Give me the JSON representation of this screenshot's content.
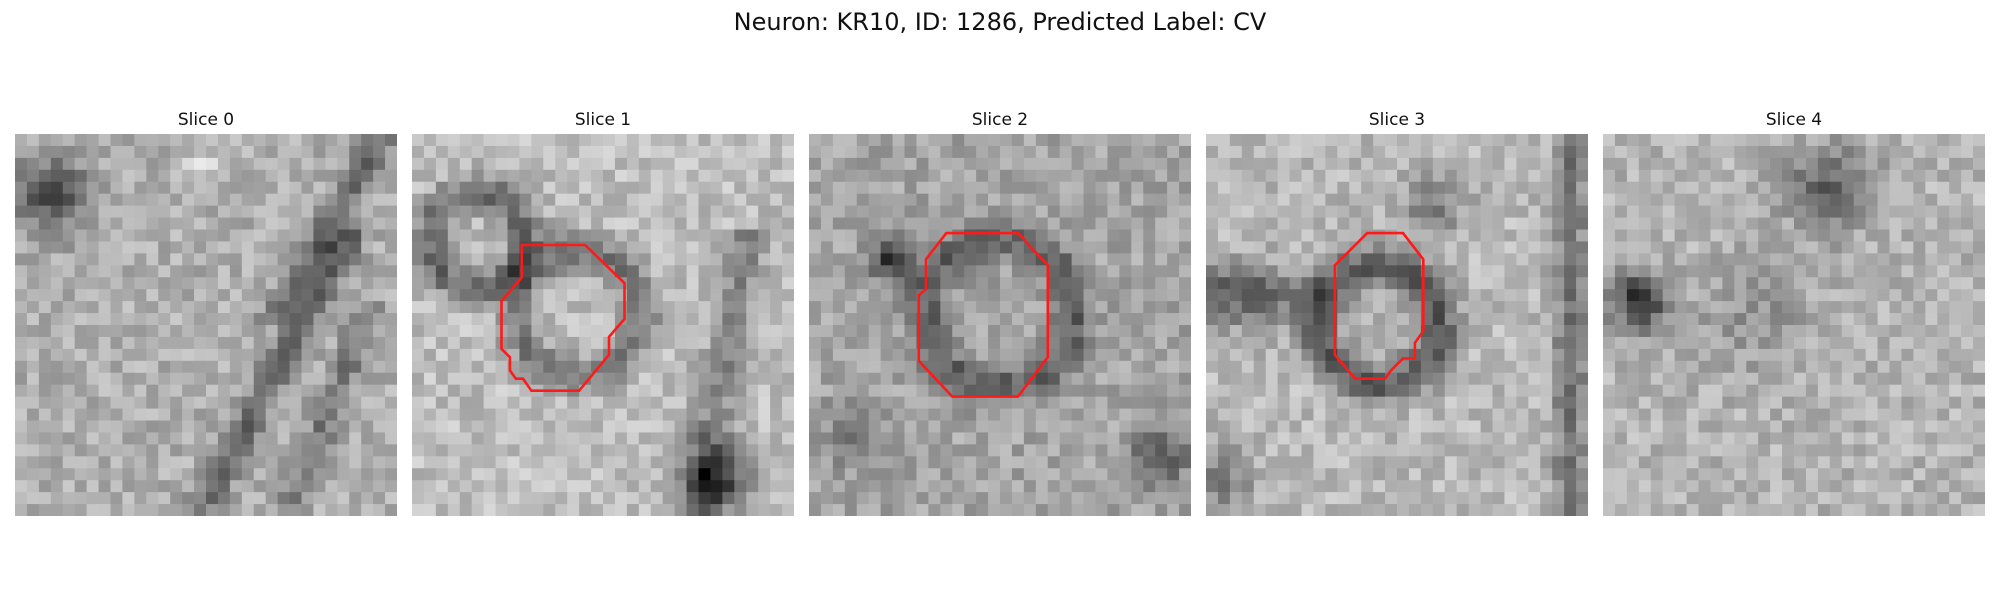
{
  "figure": {
    "title": "Neuron: KR10, ID: 1286, Predicted Label: CV"
  },
  "panels": [
    {
      "title": "Slice 0",
      "has_contour": false
    },
    {
      "title": "Slice 1",
      "has_contour": true
    },
    {
      "title": "Slice 2",
      "has_contour": true
    },
    {
      "title": "Slice 3",
      "has_contour": true
    },
    {
      "title": "Slice 4",
      "has_contour": false
    }
  ],
  "style": {
    "contour_color": "#ff1a1a",
    "colormap": "gray"
  }
}
